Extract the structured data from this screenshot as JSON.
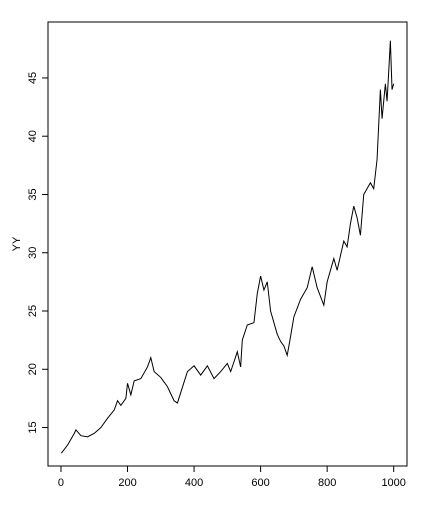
{
  "chart_data": {
    "type": "line",
    "ylabel": "YY",
    "x": [
      1,
      20,
      40,
      45,
      60,
      80,
      100,
      120,
      140,
      160,
      170,
      180,
      195,
      200,
      210,
      220,
      240,
      260,
      270,
      280,
      300,
      320,
      340,
      350,
      360,
      380,
      400,
      420,
      440,
      460,
      480,
      500,
      510,
      530,
      540,
      545,
      560,
      580,
      590,
      600,
      610,
      620,
      630,
      650,
      660,
      670,
      680,
      690,
      700,
      720,
      740,
      755,
      770,
      790,
      800,
      820,
      830,
      850,
      860,
      870,
      880,
      890,
      900,
      910,
      920,
      930,
      940,
      950,
      960,
      965,
      975,
      980,
      985,
      990,
      995,
      1000
    ],
    "series": [
      {
        "name": "YY",
        "color": "#000000",
        "values": [
          12.8,
          13.5,
          14.5,
          14.8,
          14.3,
          14.2,
          14.5,
          15.0,
          15.8,
          16.5,
          17.3,
          16.9,
          17.5,
          18.8,
          17.8,
          19.0,
          19.2,
          20.2,
          21.0,
          19.8,
          19.3,
          18.5,
          17.3,
          17.1,
          18.0,
          19.8,
          20.3,
          19.5,
          20.3,
          19.2,
          19.8,
          20.5,
          19.8,
          21.5,
          20.2,
          22.5,
          23.8,
          24.0,
          26.5,
          28.0,
          26.8,
          27.5,
          25.0,
          23.0,
          22.4,
          22.0,
          21.2,
          22.8,
          24.5,
          26.0,
          27.0,
          28.8,
          27.0,
          25.5,
          27.5,
          29.5,
          28.5,
          31.0,
          30.5,
          32.5,
          34.0,
          33.0,
          31.5,
          35.0,
          35.5,
          36.0,
          35.5,
          38.0,
          44.0,
          41.5,
          44.5,
          43.0,
          45.5,
          48.2,
          44.0,
          44.5
        ]
      }
    ],
    "xlim": [
      -39,
      1040
    ],
    "xticks": [
      0,
      200,
      400,
      600,
      800,
      1000
    ],
    "ylim": [
      11.7,
      49.8
    ],
    "yticks": [
      15,
      20,
      25,
      30,
      35,
      40,
      45
    ]
  }
}
